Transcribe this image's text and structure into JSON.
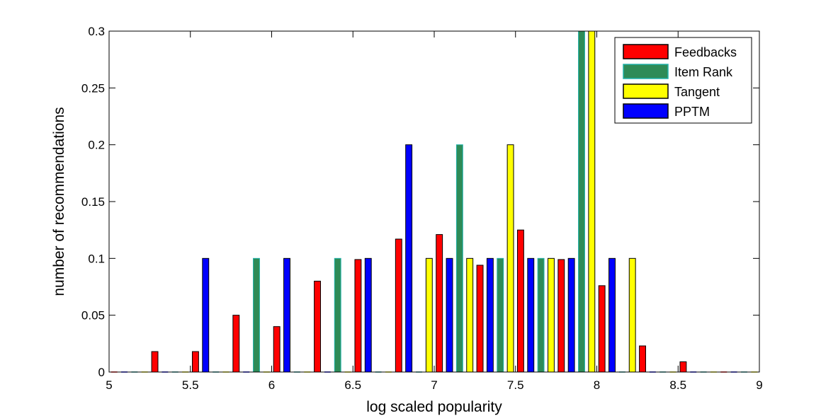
{
  "chart_data": {
    "type": "bar",
    "xlabel": "log scaled popularity",
    "ylabel": "number of recommendations",
    "xlim": [
      5,
      9
    ],
    "ylim": [
      0,
      0.3
    ],
    "xticks": [
      "5",
      "5.5",
      "6",
      "6.5",
      "7",
      "7.5",
      "8",
      "8.5",
      "9"
    ],
    "yticks": [
      "0",
      "0.05",
      "0.1",
      "0.15",
      "0.2",
      "0.25",
      "0.3"
    ],
    "legend_position": "top-right",
    "bin_centers": [
      5.125,
      5.375,
      5.625,
      5.875,
      6.125,
      6.375,
      6.625,
      6.875,
      7.125,
      7.375,
      7.625,
      7.875,
      8.125,
      8.375,
      8.625,
      8.875
    ],
    "series": [
      {
        "name": "Feedbacks",
        "color": "#ff0000",
        "values": [
          0,
          0.018,
          0.018,
          0.05,
          0.04,
          0.08,
          0.099,
          0.117,
          0.121,
          0.094,
          0.125,
          0.099,
          0.076,
          0.023,
          0.009,
          0
        ]
      },
      {
        "name": "PPTM",
        "color": "#0000ff",
        "values": [
          0,
          0,
          0.1,
          0,
          0.1,
          0,
          0.1,
          0.2,
          0.1,
          0.1,
          0.1,
          0.1,
          0.1,
          0,
          0,
          0
        ]
      },
      {
        "name": "Item Rank",
        "color": "#2e8b57",
        "values": [
          0,
          0,
          0,
          0.1,
          0,
          0.1,
          0,
          0,
          0.2,
          0.1,
          0.1,
          0.3,
          0,
          0,
          0,
          0
        ]
      },
      {
        "name": "Tangent",
        "color": "#ffff00",
        "values": [
          0,
          0,
          0,
          0,
          0,
          0,
          0,
          0.1,
          0.1,
          0.2,
          0.1,
          0.3,
          0.1,
          0,
          0,
          0
        ]
      }
    ],
    "legend_order": [
      "Feedbacks",
      "Item Rank",
      "Tangent",
      "PPTM"
    ]
  }
}
